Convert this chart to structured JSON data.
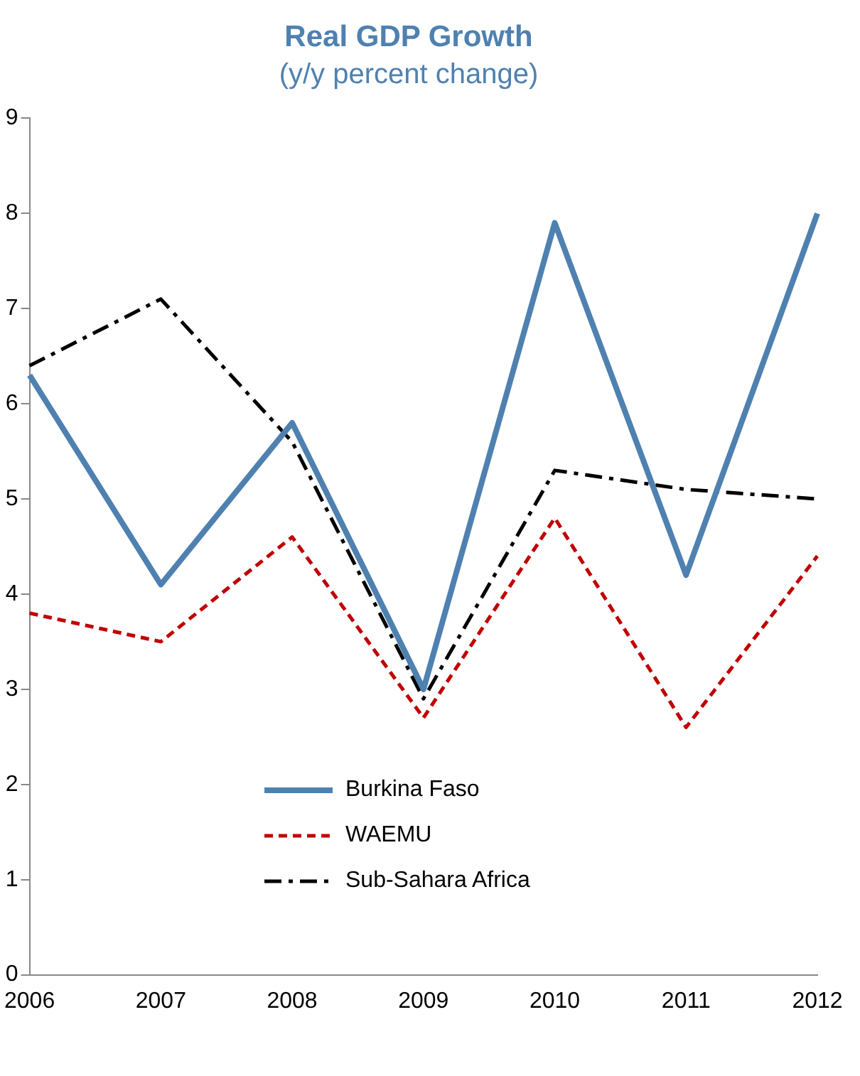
{
  "chart_data": {
    "type": "line",
    "title": "Real GDP Growth",
    "subtitle": "(y/y percent change)",
    "categories": [
      "2006",
      "2007",
      "2008",
      "2009",
      "2010",
      "2011",
      "2012"
    ],
    "series": [
      {
        "name": "Burkina Faso",
        "color": "#4f81b0",
        "line_style": "solid",
        "values": [
          6.3,
          4.1,
          5.8,
          3.0,
          7.9,
          4.2,
          8.0
        ]
      },
      {
        "name": "WAEMU",
        "color": "#c00000",
        "line_style": "dashed",
        "values": [
          3.8,
          3.5,
          4.6,
          2.7,
          4.8,
          2.6,
          4.4
        ]
      },
      {
        "name": "Sub-Sahara Africa",
        "color": "#000000",
        "line_style": "dashdot",
        "values": [
          6.4,
          7.1,
          5.6,
          2.9,
          5.3,
          5.1,
          5.0
        ]
      }
    ],
    "ylim": [
      0,
      9
    ],
    "yticks": [
      0,
      1,
      2,
      3,
      4,
      5,
      6,
      7,
      8,
      9
    ],
    "grid": false,
    "legend": "bottom left",
    "marker": "none"
  }
}
